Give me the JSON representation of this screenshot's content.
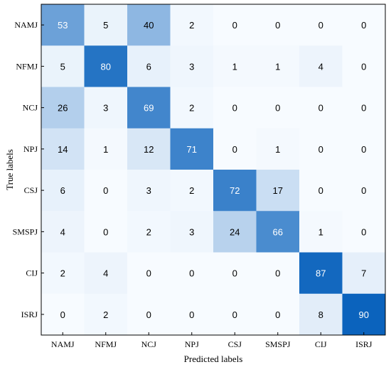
{
  "chart_data": {
    "type": "heatmap",
    "title": "",
    "xlabel": "Predicted labels",
    "ylabel": "True labels",
    "x_categories": [
      "NAMJ",
      "NFMJ",
      "NCJ",
      "NPJ",
      "CSJ",
      "SMSPJ",
      "CIJ",
      "ISRJ"
    ],
    "y_categories": [
      "NAMJ",
      "NFMJ",
      "NCJ",
      "NPJ",
      "CSJ",
      "SMSPJ",
      "CIJ",
      "ISRJ"
    ],
    "values": [
      [
        53,
        5,
        40,
        2,
        0,
        0,
        0,
        0
      ],
      [
        5,
        80,
        6,
        3,
        1,
        1,
        4,
        0
      ],
      [
        26,
        3,
        69,
        2,
        0,
        0,
        0,
        0
      ],
      [
        14,
        1,
        12,
        71,
        0,
        1,
        0,
        0
      ],
      [
        6,
        0,
        3,
        2,
        72,
        17,
        0,
        0
      ],
      [
        4,
        0,
        2,
        3,
        24,
        66,
        1,
        0
      ],
      [
        2,
        4,
        0,
        0,
        0,
        0,
        87,
        7
      ],
      [
        0,
        2,
        0,
        0,
        0,
        0,
        8,
        90
      ]
    ],
    "colormap": "Blues",
    "vmin": 0,
    "vmax": 90,
    "colors": {
      "low": "#f7fbff",
      "high": "#0b63bd"
    }
  }
}
